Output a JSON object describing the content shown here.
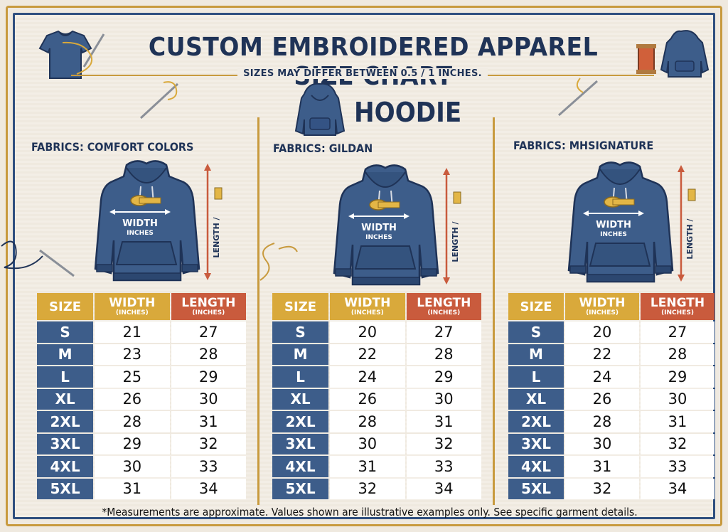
{
  "title": "CUSTOM EMBROIDERED APPAREL SIZE CHART",
  "subtitle": "SIZES MAY DIFFER BETWEEN 0.5 / 1 INCHES.",
  "garment": "HOODIE",
  "hoodie_labels": {
    "width": "WIDTH",
    "inches": "INCHES",
    "length": "LENGTH /"
  },
  "headers": {
    "size": "SIZE",
    "width": "WIDTH",
    "length": "LENGTH",
    "unit": "(INCHES)"
  },
  "columns": [
    {
      "fabric": "FABRICS: COMFORT COLORS",
      "rows": [
        {
          "size": "S",
          "width": "21",
          "length": "27"
        },
        {
          "size": "M",
          "width": "23",
          "length": "28"
        },
        {
          "size": "L",
          "width": "25",
          "length": "29"
        },
        {
          "size": "XL",
          "width": "26",
          "length": "30"
        },
        {
          "size": "2XL",
          "width": "28",
          "length": "31"
        },
        {
          "size": "3XL",
          "width": "29",
          "length": "32"
        },
        {
          "size": "4XL",
          "width": "30",
          "length": "33"
        },
        {
          "size": "5XL",
          "width": "31",
          "length": "34"
        }
      ]
    },
    {
      "fabric": "FABRICS: GILDAN",
      "rows": [
        {
          "size": "S",
          "width": "20",
          "length": "27"
        },
        {
          "size": "M",
          "width": "22",
          "length": "28"
        },
        {
          "size": "L",
          "width": "24",
          "length": "29"
        },
        {
          "size": "XL",
          "width": "26",
          "length": "30"
        },
        {
          "size": "2XL",
          "width": "28",
          "length": "31"
        },
        {
          "size": "3XL",
          "width": "30",
          "length": "32"
        },
        {
          "size": "4XL",
          "width": "31",
          "length": "33"
        },
        {
          "size": "5XL",
          "width": "32",
          "length": "34"
        }
      ]
    },
    {
      "fabric": "FABRICS: MHSIGNATURE",
      "rows": [
        {
          "size": "S",
          "width": "20",
          "length": "27"
        },
        {
          "size": "M",
          "width": "22",
          "length": "28"
        },
        {
          "size": "L",
          "width": "24",
          "length": "29"
        },
        {
          "size": "XL",
          "width": "26",
          "length": "30"
        },
        {
          "size": "2XL",
          "width": "28",
          "length": "31"
        },
        {
          "size": "3XL",
          "width": "30",
          "length": "32"
        },
        {
          "size": "4XL",
          "width": "31",
          "length": "33"
        },
        {
          "size": "5XL",
          "width": "32",
          "length": "34"
        }
      ]
    }
  ],
  "footnote": "*Measurements are approximate. Values shown are illustrative examples only. See specific garment details.",
  "colors": {
    "navy": "#1f3357",
    "hoodie": "#3d5d8a",
    "gold": "#d9a93b",
    "rust": "#c95b3d"
  }
}
